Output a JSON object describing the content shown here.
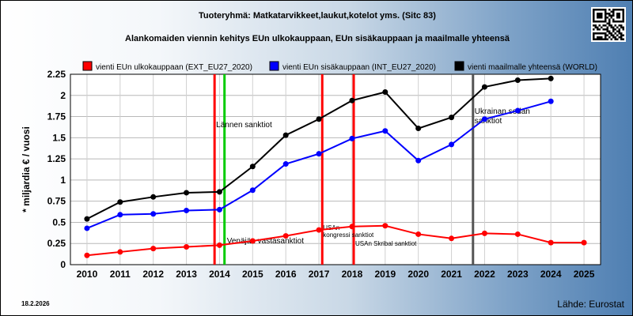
{
  "chart_data": {
    "type": "line",
    "title": "Tuoteryhmä: Matkatarvikkeet,laukut,kotelot yms. (Sitc 83)",
    "subtitle": "Alankomaiden viennin kehitys EUn ulkokauppaan, EUn sisäkauppaan ja maailmalle yhteensä",
    "ylabel": "* miljardia € / vuosi",
    "xlabel": "",
    "categories": [
      "2010",
      "2011",
      "2012",
      "2013",
      "2014",
      "2015",
      "2016",
      "2017",
      "2018",
      "2019",
      "2020",
      "2021",
      "2022",
      "2023",
      "2024",
      "2025"
    ],
    "ylim": [
      0,
      2.25
    ],
    "yticks": [
      "0",
      "0.25",
      "0.5",
      "0.75",
      "1",
      "1.25",
      "1.5",
      "1.75",
      "2",
      "2.25"
    ],
    "grid": true,
    "legend_position": "top",
    "series": [
      {
        "name": "vienti EUn ulkokauppaan (EXT_EU27_2020)",
        "color": "#ff0000",
        "x": [
          2010,
          2011,
          2012,
          2013,
          2014,
          2015,
          2016,
          2017,
          2018,
          2019,
          2020,
          2021,
          2022,
          2023,
          2024,
          2025
        ],
        "values": [
          0.11,
          0.15,
          0.19,
          0.21,
          0.23,
          0.28,
          0.34,
          0.41,
          0.45,
          0.46,
          0.36,
          0.31,
          0.37,
          0.36,
          0.26,
          0.26
        ]
      },
      {
        "name": "vienti EUn sisäkauppaan (INT_EU27_2020)",
        "color": "#0000ff",
        "x": [
          2010,
          2011,
          2012,
          2013,
          2014,
          2015,
          2016,
          2017,
          2018,
          2019,
          2020,
          2021,
          2022,
          2023,
          2024
        ],
        "values": [
          0.43,
          0.59,
          0.6,
          0.64,
          0.65,
          0.88,
          1.19,
          1.31,
          1.49,
          1.58,
          1.23,
          1.42,
          1.72,
          1.82,
          1.93
        ]
      },
      {
        "name": "vienti maailmalle yhteensä (WORLD)",
        "color": "#000000",
        "x": [
          2010,
          2011,
          2012,
          2013,
          2014,
          2015,
          2016,
          2017,
          2018,
          2019,
          2020,
          2021,
          2022,
          2023,
          2024
        ],
        "values": [
          0.54,
          0.74,
          0.8,
          0.85,
          0.86,
          1.16,
          1.53,
          1.72,
          1.94,
          2.04,
          1.61,
          1.74,
          2.1,
          2.18,
          2.2
        ]
      }
    ],
    "events": [
      {
        "x": 2013.85,
        "color": "#ff0000",
        "label": "Lännen sanktiot"
      },
      {
        "x": 2014.15,
        "color": "#00cc00",
        "label": "Venäjän vastasanktiot"
      },
      {
        "x": 2017.1,
        "color": "#ff0000",
        "label_lines": [
          "USAn",
          "kongressi sanktiot"
        ]
      },
      {
        "x": 2018.05,
        "color": "#ff0000",
        "label": "USAn Skribal sanktiot"
      },
      {
        "x": 2021.65,
        "color": "#555555",
        "label_lines": [
          "Ukrainan sodan",
          "sanktiot"
        ]
      }
    ],
    "footer_date": "18.2.2026",
    "source": "Lähde: Eurostat"
  }
}
